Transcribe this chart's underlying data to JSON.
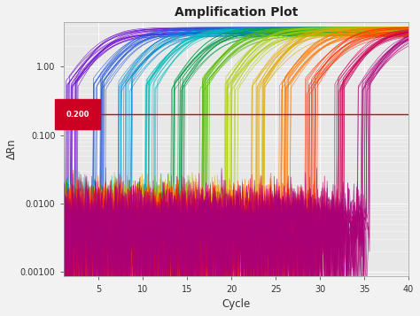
{
  "title": "Amplification Plot",
  "xlabel": "Cycle",
  "ylabel": "ΔRn",
  "xlim": [
    1,
    40
  ],
  "ylim_log": [
    0.00085,
    4.5
  ],
  "threshold": 0.2,
  "threshold_label": "0.200",
  "background_color": "#ffffff",
  "plot_bg_color": "#f0f0f0",
  "grid_color": "#ffffff",
  "curves": [
    {
      "ct": 5,
      "color": "#6600cc",
      "n": 16
    },
    {
      "ct": 8,
      "color": "#2255dd",
      "n": 16
    },
    {
      "ct": 11,
      "color": "#0088cc",
      "n": 16
    },
    {
      "ct": 14,
      "color": "#00bbbb",
      "n": 16
    },
    {
      "ct": 17,
      "color": "#009944",
      "n": 16
    },
    {
      "ct": 20,
      "color": "#55bb00",
      "n": 16
    },
    {
      "ct": 23,
      "color": "#aacc00",
      "n": 16
    },
    {
      "ct": 26,
      "color": "#ddaa00",
      "n": 16
    },
    {
      "ct": 29,
      "color": "#ff7700",
      "n": 16
    },
    {
      "ct": 32,
      "color": "#ff3300",
      "n": 16
    },
    {
      "ct": 35,
      "color": "#cc0055",
      "n": 16
    },
    {
      "ct": 38,
      "color": "#aa0077",
      "n": 16
    }
  ]
}
